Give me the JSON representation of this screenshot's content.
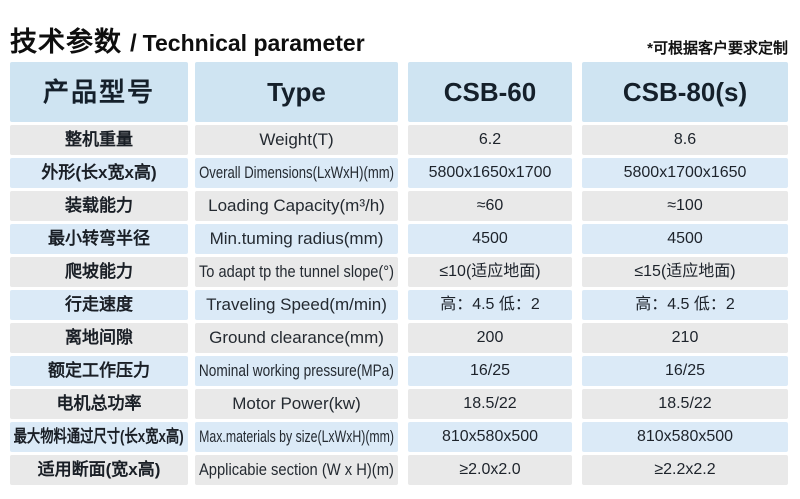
{
  "page": {
    "title_cn": "技术参数",
    "title_sep": "/",
    "title_en": "Technical parameter",
    "note": "*可根据客户要求定制"
  },
  "colors": {
    "header_bg": "#cfe4f2",
    "row_blue": "#dbeaf7",
    "row_gray": "#e9e9e9",
    "text": "#1f242b"
  },
  "table": {
    "columns": [
      {
        "key": "param_cn",
        "label": "产品型号"
      },
      {
        "key": "param_en",
        "label": "Type"
      },
      {
        "key": "csb60",
        "label": "CSB-60"
      },
      {
        "key": "csb80",
        "label": "CSB-80(s)"
      }
    ],
    "rows": [
      {
        "param_cn": "整机重量",
        "param_en": "Weight(T)",
        "csb60": "6.2",
        "csb80": "8.6"
      },
      {
        "param_cn": "外形(长x宽x高)",
        "param_en": "Overall Dimensions(LxWxH)(mm)",
        "csb60": "5800x1650x1700",
        "csb80": "5800x1700x1650"
      },
      {
        "param_cn": "装载能力",
        "param_en": "Loading Capacity(m³/h)",
        "csb60": "≈60",
        "csb80": "≈100"
      },
      {
        "param_cn": "最小转弯半径",
        "param_en": "Min.tuming radius(mm)",
        "csb60": "4500",
        "csb80": "4500"
      },
      {
        "param_cn": "爬坡能力",
        "param_en": "To adapt tp the tunnel slope(°)",
        "csb60": "≤10(适应地面)",
        "csb80": "≤15(适应地面)"
      },
      {
        "param_cn": "行走速度",
        "param_en": "Traveling Speed(m/min)",
        "csb60": "高：4.5 低：2",
        "csb80": "高：4.5 低：2"
      },
      {
        "param_cn": "离地间隙",
        "param_en": "Ground clearance(mm)",
        "csb60": "200",
        "csb80": "210"
      },
      {
        "param_cn": "额定工作压力",
        "param_en": "Nominal working pressure(MPa)",
        "csb60": "16/25",
        "csb80": "16/25"
      },
      {
        "param_cn": "电机总功率",
        "param_en": "Motor Power(kw)",
        "csb60": "18.5/22",
        "csb80": "18.5/22"
      },
      {
        "param_cn": "最大物料通过尺寸(长x宽x高)",
        "param_en": "Max.materials by size(LxWxH)(mm)",
        "csb60": "810x580x500",
        "csb80": "810x580x500"
      },
      {
        "param_cn": "适用断面(宽x高)",
        "param_en": "Applicabie section (W x H)(m)",
        "csb60": "≥2.0x2.0",
        "csb80": "≥2.2x2.2"
      }
    ]
  }
}
